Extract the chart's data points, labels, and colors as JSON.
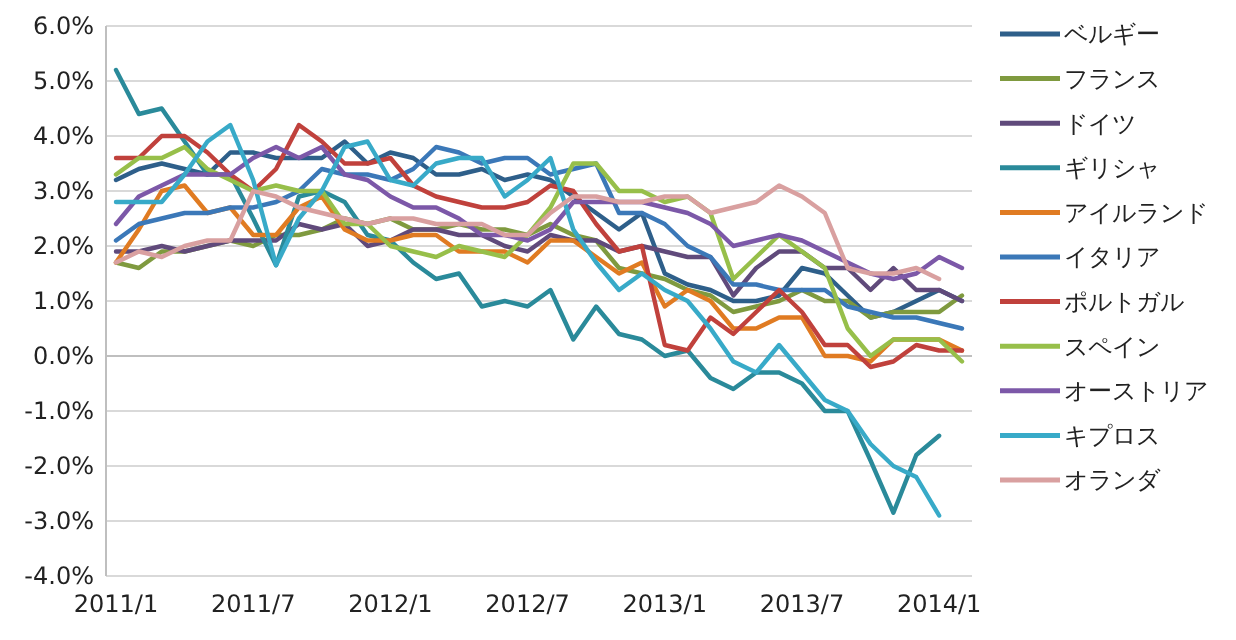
{
  "chart_data": {
    "type": "line",
    "categories": [
      "2011/1",
      null,
      null,
      null,
      null,
      null,
      "2011/7",
      null,
      null,
      null,
      null,
      null,
      "2012/1",
      null,
      null,
      null,
      null,
      null,
      "2012/7",
      null,
      null,
      null,
      null,
      null,
      "2013/1",
      null,
      null,
      null,
      null,
      null,
      "2013/7",
      null,
      null,
      null,
      null,
      null,
      "2014/1",
      null
    ],
    "ylim": [
      -4,
      6
    ],
    "yticks": [
      {
        "value": -4,
        "label": "-4.0%"
      },
      {
        "value": -3,
        "label": "-3.0%"
      },
      {
        "value": -2,
        "label": "-2.0%"
      },
      {
        "value": -1,
        "label": "-1.0%"
      },
      {
        "value": 0,
        "label": "0.0%"
      },
      {
        "value": 1,
        "label": "1.0%"
      },
      {
        "value": 2,
        "label": "2.0%"
      },
      {
        "value": 3,
        "label": "3.0%"
      },
      {
        "value": 4,
        "label": "4.0%"
      },
      {
        "value": 5,
        "label": "5.0%"
      },
      {
        "value": 6,
        "label": "6.0%"
      }
    ],
    "grid": "y",
    "legend": "right",
    "line_style": "solid",
    "series": [
      {
        "name": "ベルギー",
        "color": "#2e5f8a",
        "values": [
          3.2,
          3.4,
          3.5,
          3.4,
          3.3,
          3.7,
          3.7,
          3.6,
          3.6,
          3.6,
          3.9,
          3.5,
          3.7,
          3.6,
          3.3,
          3.3,
          3.4,
          3.2,
          3.3,
          3.2,
          2.9,
          2.6,
          2.3,
          2.6,
          1.5,
          1.3,
          1.2,
          1.0,
          1.0,
          1.1,
          1.6,
          1.5,
          1.1,
          0.7,
          0.8,
          1.0,
          1.2,
          1.0
        ]
      },
      {
        "name": "フランス",
        "color": "#7f9a3f",
        "values": [
          1.7,
          1.6,
          1.9,
          1.9,
          2.0,
          2.1,
          2.0,
          2.2,
          2.2,
          2.3,
          2.5,
          2.4,
          2.5,
          2.3,
          2.3,
          2.4,
          2.3,
          2.3,
          2.2,
          2.4,
          2.2,
          2.1,
          1.6,
          1.5,
          1.4,
          1.2,
          1.1,
          0.8,
          0.9,
          1.0,
          1.2,
          1.0,
          1.0,
          0.7,
          0.8,
          0.8,
          0.8,
          1.1
        ]
      },
      {
        "name": "ドイツ",
        "color": "#604a7b",
        "values": [
          1.9,
          1.9,
          2.0,
          1.9,
          2.0,
          2.1,
          2.1,
          2.1,
          2.4,
          2.3,
          2.4,
          2.0,
          2.1,
          2.3,
          2.3,
          2.2,
          2.2,
          2.0,
          1.9,
          2.2,
          2.1,
          2.1,
          1.9,
          2.0,
          1.9,
          1.8,
          1.8,
          1.1,
          1.6,
          1.9,
          1.9,
          1.6,
          1.6,
          1.2,
          1.6,
          1.2,
          1.2,
          1.0
        ]
      },
      {
        "name": "ギリシャ",
        "color": "#2a8a9a",
        "values": [
          5.2,
          4.4,
          4.5,
          3.9,
          3.3,
          3.3,
          2.5,
          1.65,
          2.9,
          3.0,
          2.8,
          2.2,
          2.1,
          1.7,
          1.4,
          1.5,
          0.9,
          1.0,
          0.9,
          1.2,
          0.3,
          0.9,
          0.4,
          0.3,
          0.0,
          0.1,
          -0.4,
          -0.6,
          -0.3,
          -0.3,
          -0.5,
          -1.0,
          -1.0,
          -1.9,
          -2.85,
          -1.8,
          -1.45,
          null
        ]
      },
      {
        "name": "アイルランド",
        "color": "#e07b22",
        "values": [
          1.7,
          2.3,
          3.0,
          3.1,
          2.6,
          2.7,
          2.2,
          2.2,
          2.7,
          2.9,
          2.3,
          2.1,
          2.1,
          2.2,
          2.2,
          1.9,
          1.9,
          1.9,
          1.7,
          2.1,
          2.1,
          1.8,
          1.5,
          1.7,
          0.9,
          1.2,
          1.0,
          0.5,
          0.5,
          0.7,
          0.7,
          0.0,
          0.0,
          -0.1,
          0.3,
          0.3,
          0.3,
          0.1
        ]
      },
      {
        "name": "イタリア",
        "color": "#3b78b8",
        "values": [
          2.1,
          2.4,
          2.5,
          2.6,
          2.6,
          2.7,
          2.7,
          2.8,
          3.0,
          3.4,
          3.3,
          3.3,
          3.2,
          3.4,
          3.8,
          3.7,
          3.5,
          3.6,
          3.6,
          3.3,
          3.4,
          3.5,
          2.6,
          2.6,
          2.4,
          2.0,
          1.8,
          1.3,
          1.3,
          1.2,
          1.2,
          1.2,
          0.9,
          0.8,
          0.7,
          0.7,
          0.6,
          0.5
        ]
      },
      {
        "name": "ポルトガル",
        "color": "#c0413c",
        "values": [
          3.6,
          3.6,
          4.0,
          4.0,
          3.7,
          3.3,
          3.0,
          3.4,
          4.2,
          3.9,
          3.5,
          3.5,
          3.6,
          3.1,
          2.9,
          2.8,
          2.7,
          2.7,
          2.8,
          3.1,
          3.0,
          2.4,
          1.9,
          2.0,
          0.2,
          0.1,
          0.7,
          0.4,
          0.8,
          1.2,
          0.8,
          0.2,
          0.2,
          -0.2,
          -0.1,
          0.2,
          0.1,
          0.1
        ]
      },
      {
        "name": "スペイン",
        "color": "#97bf4a",
        "values": [
          3.3,
          3.6,
          3.6,
          3.8,
          3.4,
          3.2,
          3.0,
          3.1,
          3.0,
          3.0,
          2.4,
          2.4,
          2.0,
          1.9,
          1.8,
          2.0,
          1.9,
          1.8,
          2.2,
          2.7,
          3.5,
          3.5,
          3.0,
          3.0,
          2.8,
          2.9,
          2.6,
          1.4,
          1.8,
          2.2,
          1.9,
          1.6,
          0.5,
          0.0,
          0.3,
          0.3,
          0.3,
          -0.1
        ]
      },
      {
        "name": "オーストリア",
        "color": "#7c58a8",
        "values": [
          2.4,
          2.9,
          3.1,
          3.3,
          3.3,
          3.3,
          3.6,
          3.8,
          3.6,
          3.8,
          3.3,
          3.2,
          2.9,
          2.7,
          2.7,
          2.5,
          2.2,
          2.2,
          2.1,
          2.3,
          2.8,
          2.8,
          2.8,
          2.8,
          2.7,
          2.6,
          2.4,
          2.0,
          2.1,
          2.2,
          2.1,
          1.9,
          1.7,
          1.5,
          1.4,
          1.5,
          1.8,
          1.6
        ]
      },
      {
        "name": "キプロス",
        "color": "#38aac8",
        "values": [
          2.8,
          2.8,
          2.8,
          3.3,
          3.9,
          4.2,
          3.2,
          1.65,
          2.5,
          3.0,
          3.8,
          3.9,
          3.2,
          3.1,
          3.5,
          3.6,
          3.6,
          2.9,
          3.2,
          3.6,
          2.3,
          1.7,
          1.2,
          1.5,
          1.2,
          1.0,
          0.5,
          -0.1,
          -0.3,
          0.2,
          -0.3,
          -0.8,
          -1.0,
          -1.6,
          -2.0,
          -2.2,
          -2.9,
          null
        ]
      },
      {
        "name": "オランダ",
        "color": "#d9a0a0",
        "values": [
          1.7,
          1.9,
          1.8,
          2.0,
          2.1,
          2.1,
          3.0,
          2.9,
          2.7,
          2.6,
          2.5,
          2.4,
          2.5,
          2.5,
          2.4,
          2.4,
          2.4,
          2.2,
          2.2,
          2.6,
          2.9,
          2.9,
          2.8,
          2.8,
          2.9,
          2.9,
          2.6,
          2.7,
          2.8,
          3.1,
          2.9,
          2.6,
          1.6,
          1.5,
          1.5,
          1.6,
          1.4,
          null
        ]
      }
    ]
  }
}
